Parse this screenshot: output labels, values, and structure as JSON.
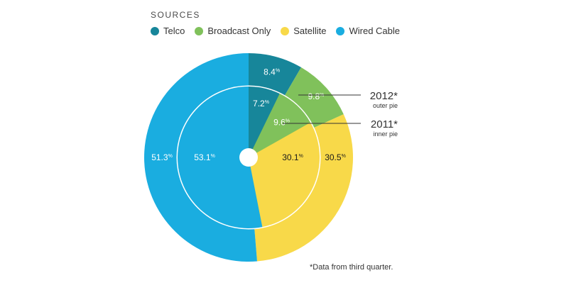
{
  "legend_title": "SOURCES",
  "chart_data": {
    "type": "pie",
    "categories": [
      "Telco",
      "Broadcast Only",
      "Satellite",
      "Wired Cable"
    ],
    "colors": {
      "Telco": "#17869a",
      "Broadcast Only": "#80c15b",
      "Satellite": "#f8d949",
      "Wired Cable": "#1aade0"
    },
    "series": [
      {
        "name": "2012*",
        "ring": "outer",
        "values": [
          8.4,
          9.8,
          30.5,
          51.3
        ],
        "labels": [
          "8.4",
          "9.8",
          "30.5",
          "51.3"
        ]
      },
      {
        "name": "2011*",
        "ring": "inner",
        "values": [
          7.2,
          9.6,
          30.1,
          53.1
        ],
        "labels": [
          "7.2",
          "9.6",
          "30.1",
          "53.1"
        ]
      }
    ],
    "pct_symbol": "%",
    "callouts": [
      {
        "title": "2012*",
        "subtitle": "outer pie"
      },
      {
        "title": "2011*",
        "subtitle": "inner pie"
      }
    ],
    "footnote": "*Data from third quarter."
  }
}
